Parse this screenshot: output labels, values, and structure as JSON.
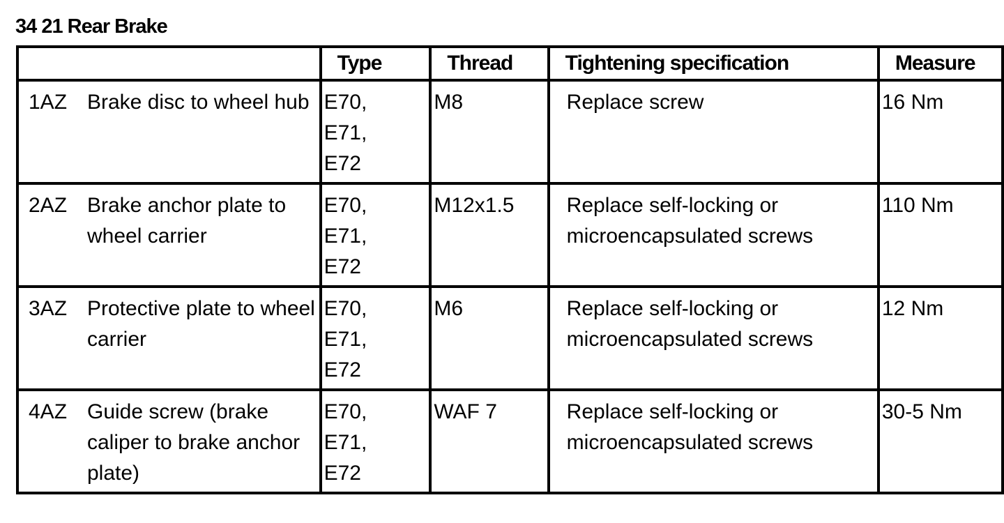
{
  "title": "34 21 Rear Brake",
  "headers": [
    "",
    "Type",
    "Thread",
    "Tightening specification",
    "Measure"
  ],
  "rows": [
    {
      "id": "1AZ",
      "description": "Brake disc to wheel hub",
      "type": [
        "E70,",
        "E71,",
        "E72"
      ],
      "thread": "M8",
      "specification": "Replace screw",
      "measure": "16 Nm"
    },
    {
      "id": "2AZ",
      "description": "Brake anchor plate to wheel carrier",
      "type": [
        "E70,",
        "E71,",
        "E72"
      ],
      "thread": "M12x1.5",
      "specification": "Replace self-locking or microencapsulated screws",
      "measure": "110 Nm"
    },
    {
      "id": "3AZ",
      "description": "Protective plate to wheel carrier",
      "type": [
        "E70,",
        "E71,",
        "E72"
      ],
      "thread": "M6",
      "specification": "Replace self-locking or microencapsulated screws",
      "measure": "12 Nm"
    },
    {
      "id": "4AZ",
      "description": "Guide screw (brake caliper to brake anchor plate)",
      "type": [
        "E70,",
        "E71,",
        "E72"
      ],
      "thread": "WAF 7",
      "specification": "Replace self-locking or microencapsulated screws",
      "measure": "30-5 Nm"
    }
  ]
}
